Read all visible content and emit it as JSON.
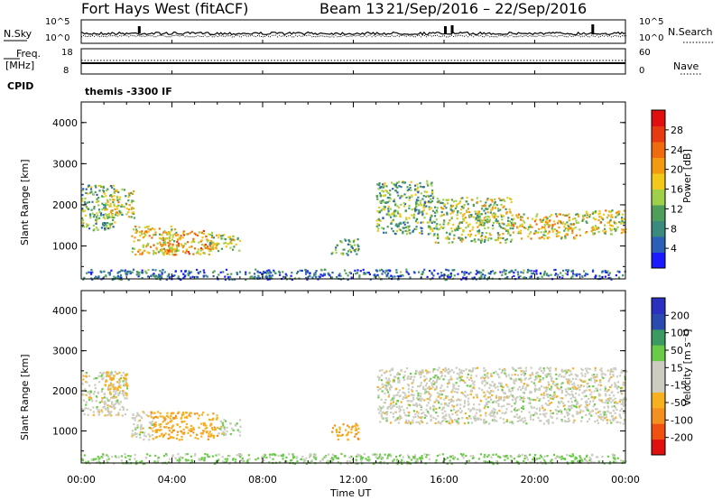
{
  "header": {
    "title": "Fort Hays West (fitACF)",
    "beam": "Beam 13",
    "date_range": "21/Sep/2016 – 22/Sep/2016"
  },
  "noise_panel": {
    "left_label": "N.Sky",
    "right_label": "N.Search",
    "left_ticks": [
      "10^5",
      "10^0"
    ],
    "right_ticks": [
      "10^5",
      "10^0"
    ]
  },
  "freq_panel": {
    "left_label_1": "Freq.",
    "left_label_2": "[MHz]",
    "right_label": "Nave",
    "left_ticks": [
      "18",
      "8"
    ],
    "right_ticks": [
      "60",
      "0"
    ]
  },
  "cpid": {
    "label": "CPID",
    "value": "themis -3300 IF"
  },
  "x_axis": {
    "label": "Time UT",
    "ticks": [
      "00:00",
      "04:00",
      "08:00",
      "12:00",
      "16:00",
      "20:00",
      "00:00"
    ],
    "hours": [
      0,
      4,
      8,
      12,
      16,
      20,
      24
    ]
  },
  "chart_data": [
    {
      "type": "heatmap",
      "name": "power",
      "ylabel": "Slant Range [km]",
      "y_ticks": [
        "1000",
        "2000",
        "3000",
        "4000"
      ],
      "ylim": [
        200,
        4500
      ],
      "xlim": [
        0,
        24
      ],
      "colorbar": {
        "label": "Power [dB]",
        "ticks": [
          "4",
          "8",
          "12",
          "16",
          "20",
          "24",
          "28"
        ],
        "colors": [
          "#1a1aff",
          "#2b5fb8",
          "#3a8a7e",
          "#4f9e5a",
          "#9ed04a",
          "#f2c81a",
          "#f29a10",
          "#f06a10",
          "#e83a10",
          "#e01010"
        ]
      },
      "regions": [
        {
          "t0": 0.0,
          "t1": 1.5,
          "r0": 1400,
          "r1": 2500,
          "value": 12
        },
        {
          "t0": 1.0,
          "t1": 2.3,
          "r0": 1700,
          "r1": 2400,
          "value": 16
        },
        {
          "t0": 2.2,
          "t1": 4.2,
          "r0": 800,
          "r1": 1500,
          "value": 18
        },
        {
          "t0": 3.5,
          "t1": 5.8,
          "r0": 800,
          "r1": 1400,
          "value": 20
        },
        {
          "t0": 5.5,
          "t1": 7.0,
          "r0": 900,
          "r1": 1300,
          "value": 16
        },
        {
          "t0": 11.0,
          "t1": 12.2,
          "r0": 800,
          "r1": 1200,
          "value": 10
        },
        {
          "t0": 13.0,
          "t1": 15.5,
          "r0": 1300,
          "r1": 2600,
          "value": 12
        },
        {
          "t0": 15.5,
          "t1": 19.0,
          "r0": 1100,
          "r1": 2200,
          "value": 14
        },
        {
          "t0": 19.0,
          "t1": 22.0,
          "r0": 1200,
          "r1": 1800,
          "value": 18
        },
        {
          "t0": 22.0,
          "t1": 24.0,
          "r0": 1300,
          "r1": 1900,
          "value": 16
        },
        {
          "t0": 0.0,
          "t1": 24.0,
          "r0": 200,
          "r1": 450,
          "value": 6
        }
      ]
    },
    {
      "type": "heatmap",
      "name": "velocity",
      "ylabel": "Slant Range [km]",
      "y_ticks": [
        "1000",
        "2000",
        "3000",
        "4000"
      ],
      "ylim": [
        200,
        4500
      ],
      "xlim": [
        0,
        24
      ],
      "colorbar": {
        "label": "Velocity [m s⁻¹]",
        "ticks": [
          "-200",
          "-100",
          "-50",
          "-15",
          "15",
          "50",
          "100",
          "200"
        ],
        "colors": [
          "#e01010",
          "#f05010",
          "#f39020",
          "#f6b020",
          "#ccccc0",
          "#ccccc0",
          "#6acb48",
          "#3a9a60",
          "#2a4ab0",
          "#2a30c0"
        ]
      },
      "regions": [
        {
          "t0": 0.0,
          "t1": 2.0,
          "r0": 1400,
          "r1": 2500,
          "value": 0
        },
        {
          "t0": 1.0,
          "t1": 2.0,
          "r0": 1900,
          "r1": 2500,
          "value": -30
        },
        {
          "t0": 2.2,
          "t1": 3.2,
          "r0": 800,
          "r1": 1500,
          "value": 0
        },
        {
          "t0": 3.0,
          "t1": 6.0,
          "r0": 800,
          "r1": 1500,
          "value": -40
        },
        {
          "t0": 6.0,
          "t1": 7.0,
          "r0": 900,
          "r1": 1300,
          "value": 0
        },
        {
          "t0": 11.0,
          "t1": 12.2,
          "r0": 800,
          "r1": 1200,
          "value": -40
        },
        {
          "t0": 13.0,
          "t1": 24.0,
          "r0": 1200,
          "r1": 2600,
          "value": 0
        },
        {
          "t0": 0.0,
          "t1": 24.0,
          "r0": 200,
          "r1": 450,
          "value": 20
        }
      ]
    }
  ]
}
